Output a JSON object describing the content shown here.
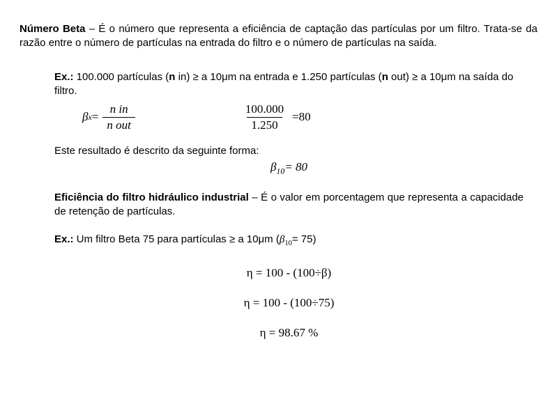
{
  "definition": {
    "term": "Número Beta",
    "text": " – É o número que representa a eficiência de captação das partículas por um filtro. Trata-se da razão entre o número de partículas na entrada do filtro e o número de partículas na saída."
  },
  "example1": {
    "label": "Ex.:",
    "part1": " 100.000 partículas (",
    "n_in_label": "n ",
    "in_word": "in",
    "part2": ") ≥ a 10μm na entrada e 1.250 partículas (",
    "n_out_label": "n ",
    "out_word": "out",
    "part3": ") ≥ a 10μm na saída do filtro."
  },
  "formula_general": {
    "beta": "β",
    "subscript": "x",
    "equals": " = ",
    "numerator": "n in",
    "denominator": "n out"
  },
  "formula_numeric": {
    "numerator": "100.000",
    "denominator": "1.250",
    "equals": " = ",
    "result": "80"
  },
  "result_intro": "Este resultado é descrito da seguinte forma:",
  "result_formula": {
    "beta": "β",
    "subscript": "10",
    "equals_value": "= 80"
  },
  "efficiency": {
    "term": "Eficiência do filtro hidráulico industrial",
    "text": " – É o valor em porcentagem que representa a capacidade de retenção de partículas."
  },
  "example2": {
    "label": "Ex.:",
    "part1": " Um filtro Beta 75 para partículas ≥ a 10μm (",
    "beta": "β",
    "subscript": "10",
    "part2": "= 75)"
  },
  "eta_lines": {
    "line1": "η = 100 - (100÷β)",
    "line2": "η = 100 - (100÷75)",
    "line3": "η = 98.67 %"
  }
}
